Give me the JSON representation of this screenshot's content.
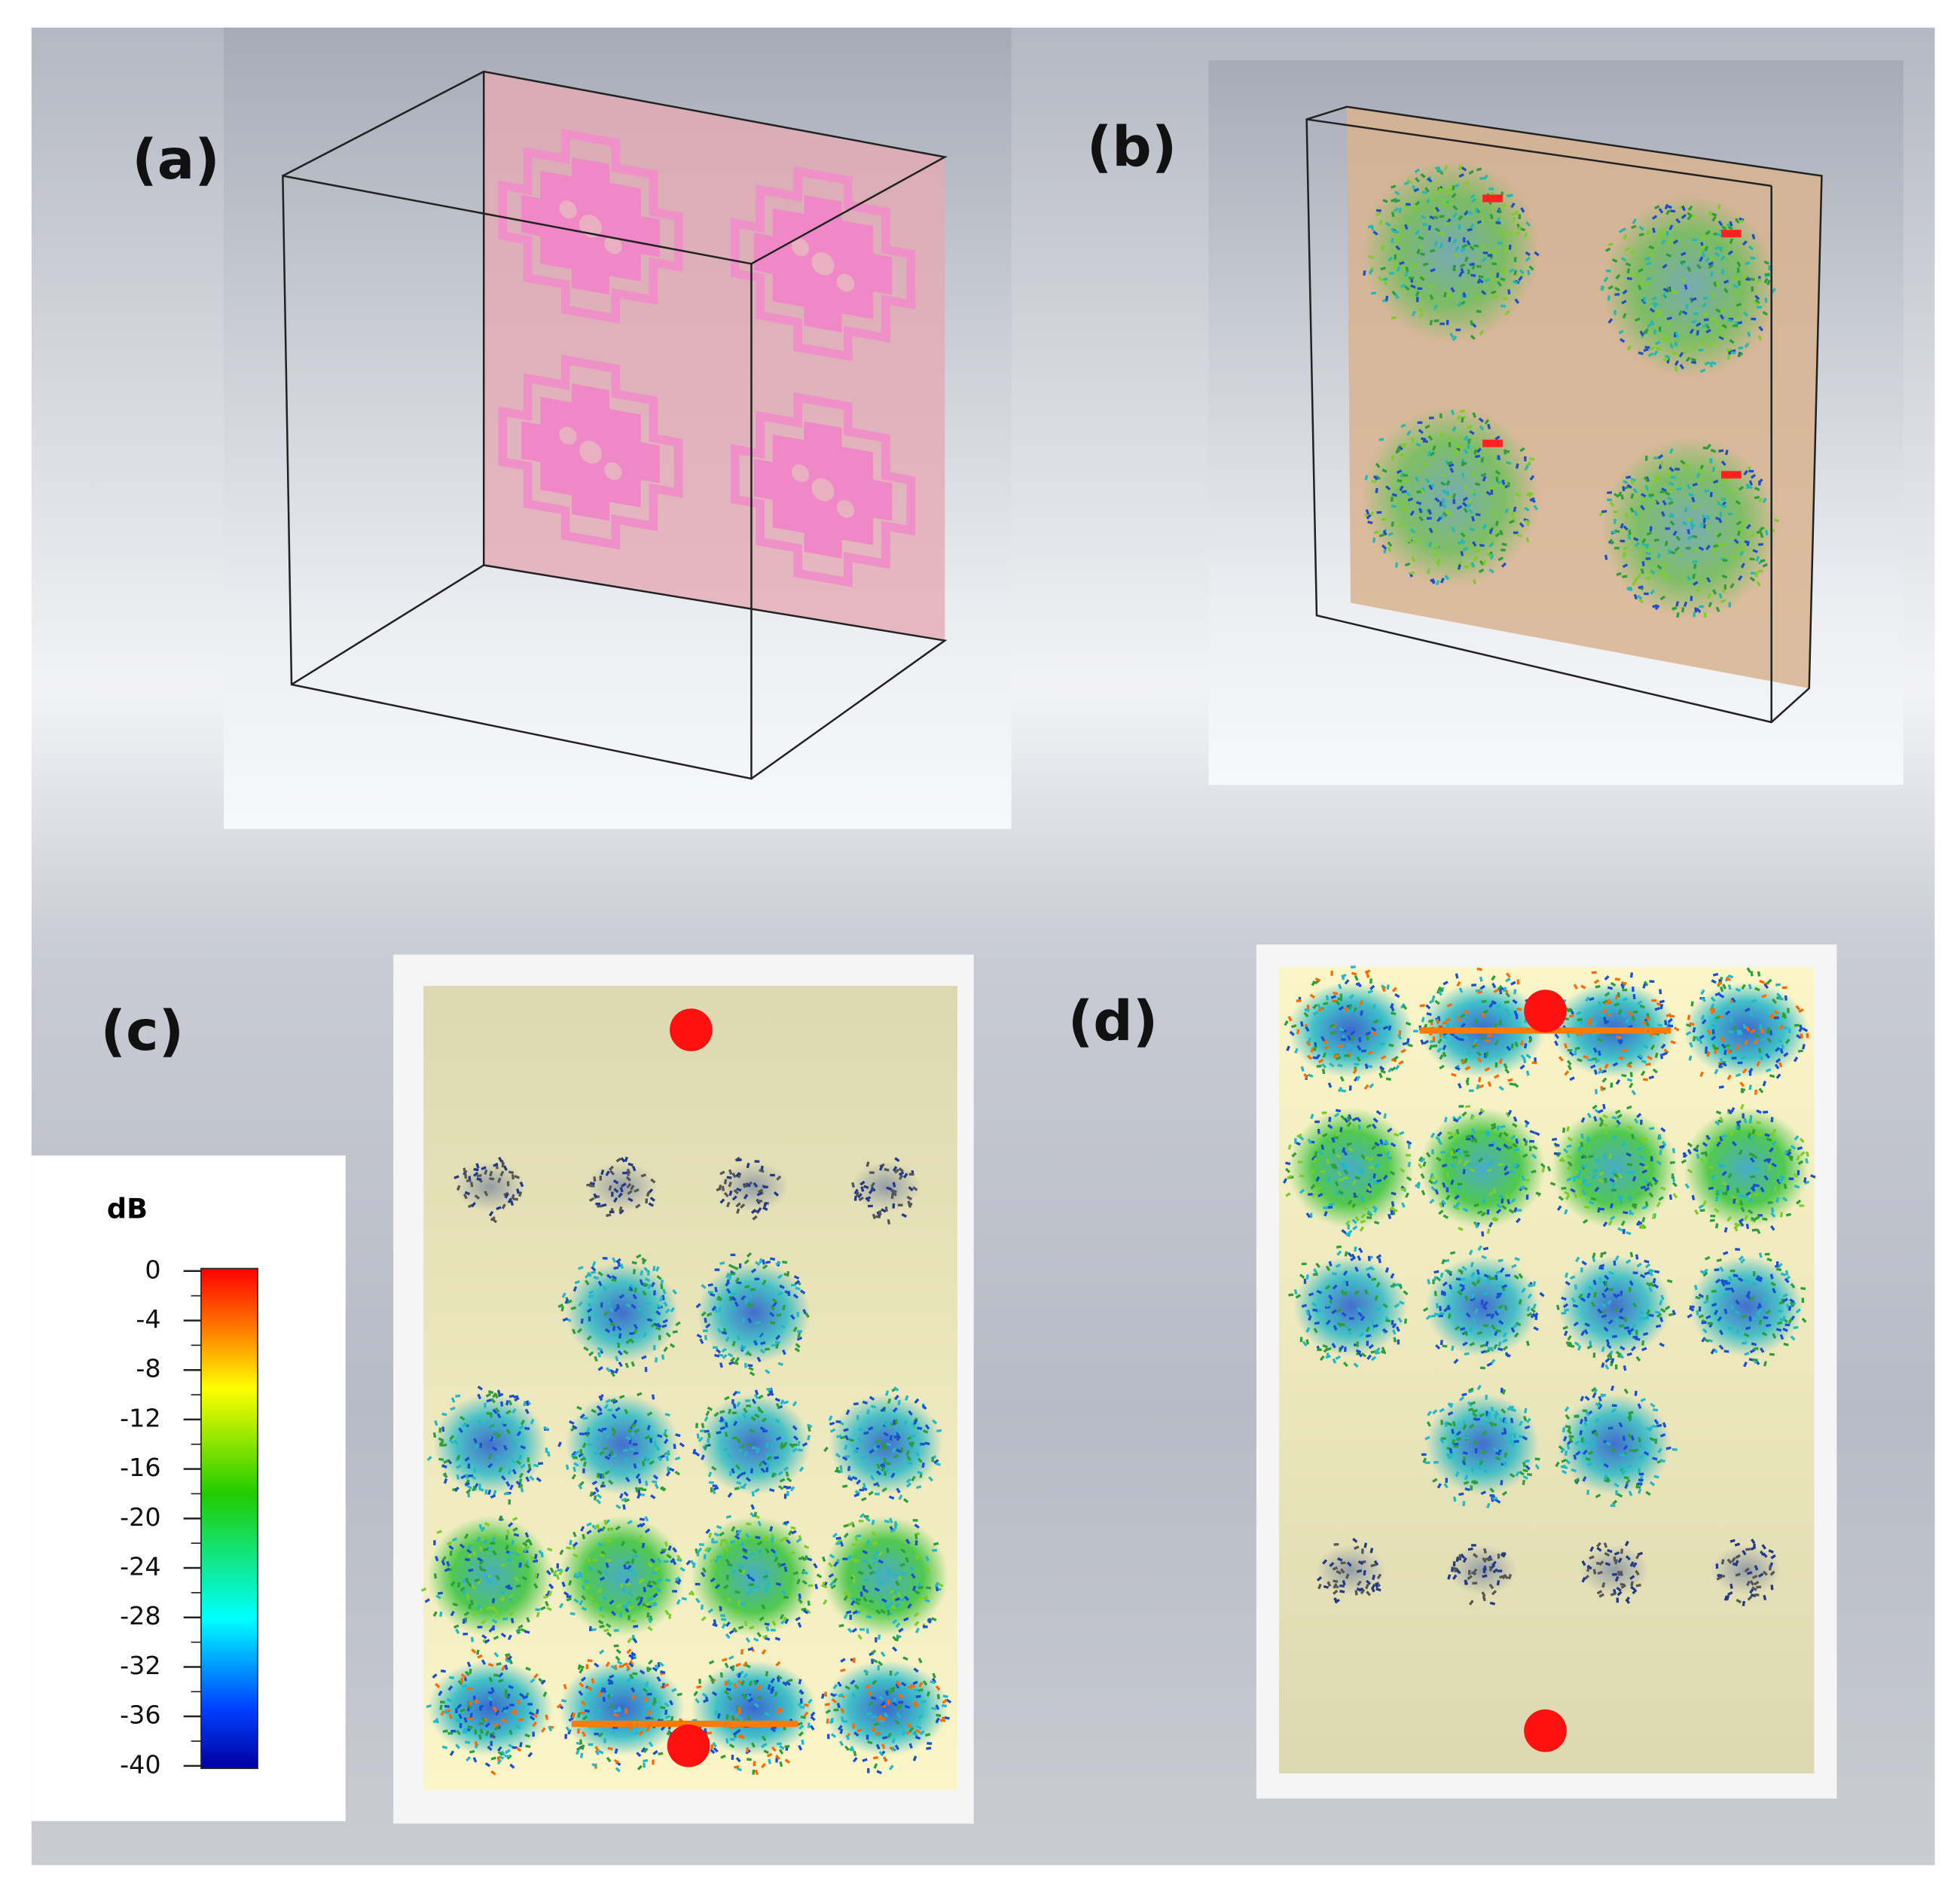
{
  "panels": [
    {
      "label": "(a)"
    },
    {
      "label": "(b)"
    },
    {
      "label": "(c)"
    },
    {
      "label": "(d)"
    }
  ],
  "colorbar": {
    "unit": "dB",
    "lim": [
      -40,
      0
    ],
    "ticks": [
      0,
      -4,
      -8,
      -12,
      -16,
      -20,
      -24,
      -28,
      -32,
      -36,
      -40
    ]
  }
}
